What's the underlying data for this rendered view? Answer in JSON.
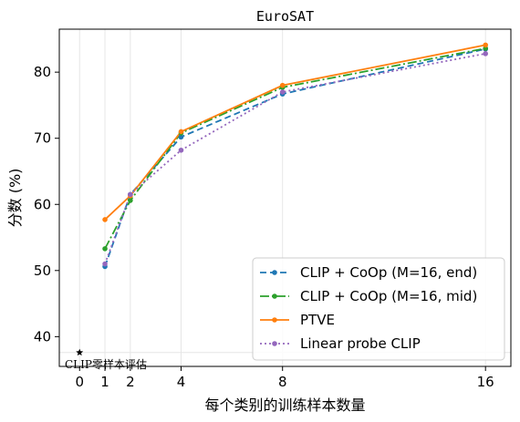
{
  "chart_data": {
    "type": "line",
    "title": "EuroSAT",
    "xlabel": "每个类别的训练样本数量",
    "ylabel": "分数 (%)",
    "xlim": [
      -0.8,
      17.0
    ],
    "ylim": [
      35.5,
      86.5
    ],
    "xticks": [
      0,
      1,
      2,
      4,
      8,
      16
    ],
    "yticks": [
      40,
      50,
      60,
      70,
      80
    ],
    "grid": "vertical-light",
    "legend_position": "lower-right",
    "series": [
      {
        "name": "CLIP + CoOp (M=16, end)",
        "color": "#1f77b4",
        "dash": "7,4",
        "x": [
          1,
          2,
          4,
          8,
          16
        ],
        "y": [
          50.6,
          61.5,
          70.2,
          76.7,
          83.5
        ]
      },
      {
        "name": "CLIP + CoOp (M=16, mid)",
        "color": "#2ca02c",
        "dash": "10,3,2,3",
        "x": [
          1,
          2,
          4,
          8,
          16
        ],
        "y": [
          53.3,
          60.6,
          70.8,
          77.7,
          83.6
        ]
      },
      {
        "name": "PTVE",
        "color": "#ff7f0e",
        "dash": "",
        "x": [
          1,
          2,
          4,
          8,
          16
        ],
        "y": [
          57.7,
          61.3,
          71.0,
          78.0,
          84.1
        ]
      },
      {
        "name": "Linear probe CLIP",
        "color": "#9467bd",
        "dash": "2,3",
        "x": [
          1,
          2,
          4,
          8,
          16
        ],
        "y": [
          51.0,
          61.5,
          68.2,
          77.0,
          82.8
        ]
      }
    ],
    "zero_shot": {
      "label": "CLIP零样本评估",
      "x": 0,
      "y": 37.6
    }
  }
}
